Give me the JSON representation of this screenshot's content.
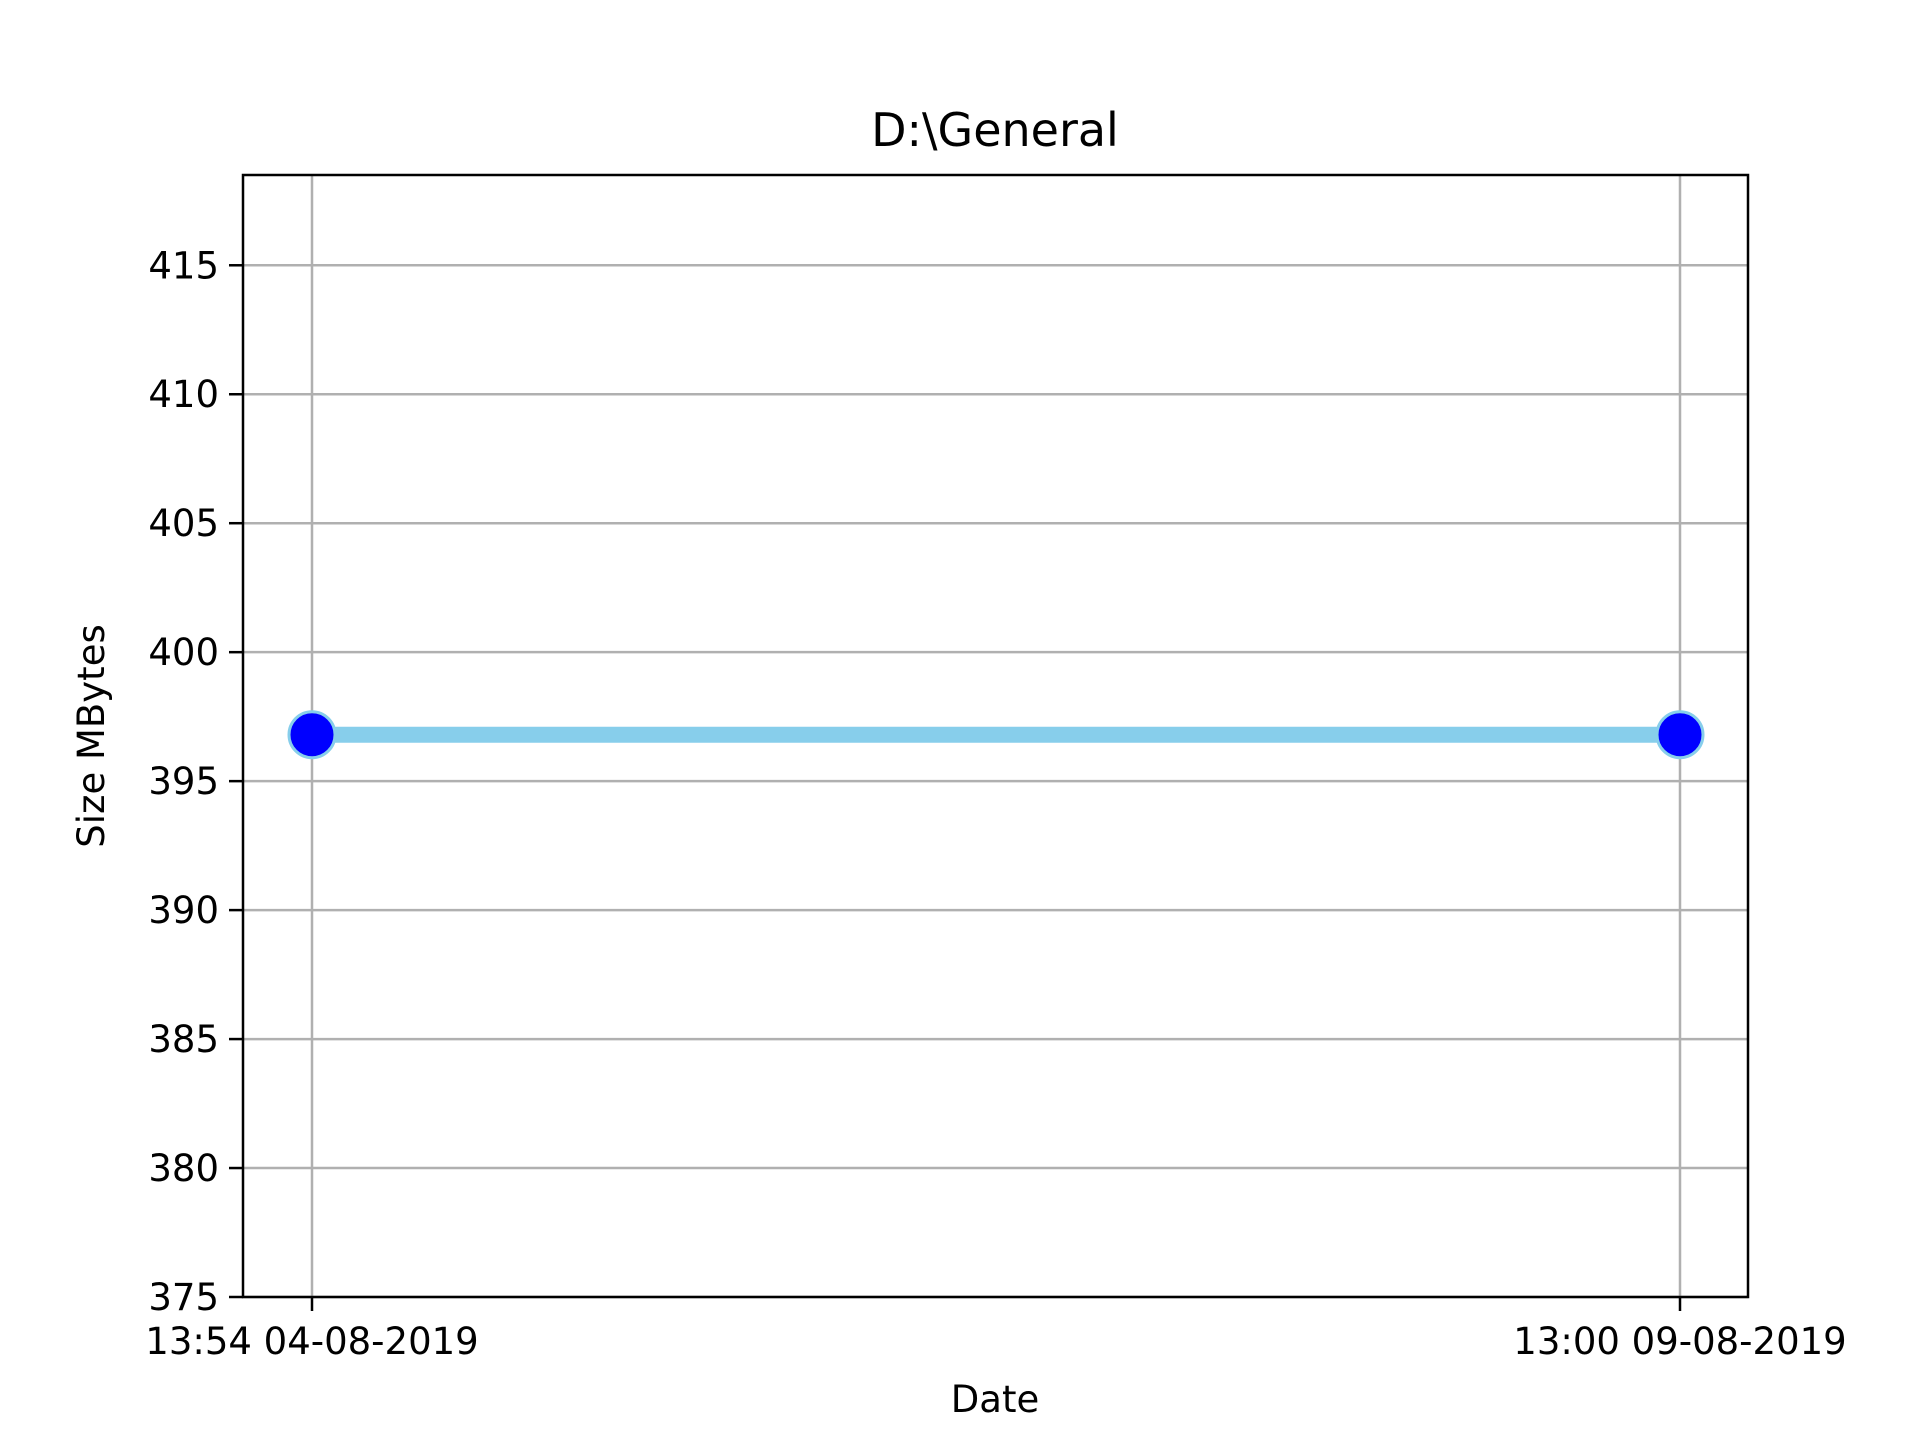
{
  "chart_data": {
    "type": "line",
    "title": "D:\\General",
    "xlabel": "Date",
    "ylabel": "Size MBytes",
    "x": [
      "13:54 04-08-2019",
      "13:00 09-08-2019"
    ],
    "series": [
      {
        "values": [
          396.8,
          396.8
        ],
        "line_color": "#87ceeb",
        "marker_color": "#0000ff",
        "marker_edge_color": "#87ceeb"
      }
    ],
    "ylim": [
      375,
      418.5
    ],
    "yticks": [
      375,
      380,
      385,
      390,
      395,
      400,
      405,
      410,
      415
    ],
    "ytick_labels": [
      "375",
      "380",
      "385",
      "390",
      "395",
      "400",
      "405",
      "410",
      "415"
    ],
    "xtick_labels": [
      "13:54 04-08-2019",
      "13:00 09-08-2019"
    ],
    "grid": true,
    "grid_color": "#b0b0b0",
    "legend": "none"
  }
}
